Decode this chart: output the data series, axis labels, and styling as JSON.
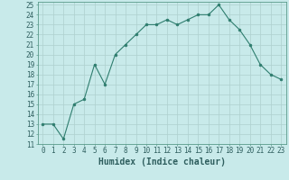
{
  "x": [
    0,
    1,
    2,
    3,
    4,
    5,
    6,
    7,
    8,
    9,
    10,
    11,
    12,
    13,
    14,
    15,
    16,
    17,
    18,
    19,
    20,
    21,
    22,
    23
  ],
  "y": [
    13,
    13,
    11.5,
    15,
    15.5,
    19,
    17,
    20,
    21,
    22,
    23,
    23,
    23.5,
    23,
    23.5,
    24,
    24,
    25,
    23.5,
    22.5,
    21,
    19,
    18,
    17.5
  ],
  "line_color": "#2e7d6e",
  "marker_color": "#2e7d6e",
  "bg_color": "#c8eaea",
  "grid_color": "#aed0ce",
  "xlabel": "Humidex (Indice chaleur)",
  "xlim": [
    -0.5,
    23.5
  ],
  "ylim": [
    11,
    25.3
  ],
  "yticks": [
    11,
    12,
    13,
    14,
    15,
    16,
    17,
    18,
    19,
    20,
    21,
    22,
    23,
    24,
    25
  ],
  "xticks": [
    0,
    1,
    2,
    3,
    4,
    5,
    6,
    7,
    8,
    9,
    10,
    11,
    12,
    13,
    14,
    15,
    16,
    17,
    18,
    19,
    20,
    21,
    22,
    23
  ],
  "tick_fontsize": 5.5,
  "label_fontsize": 7.0
}
